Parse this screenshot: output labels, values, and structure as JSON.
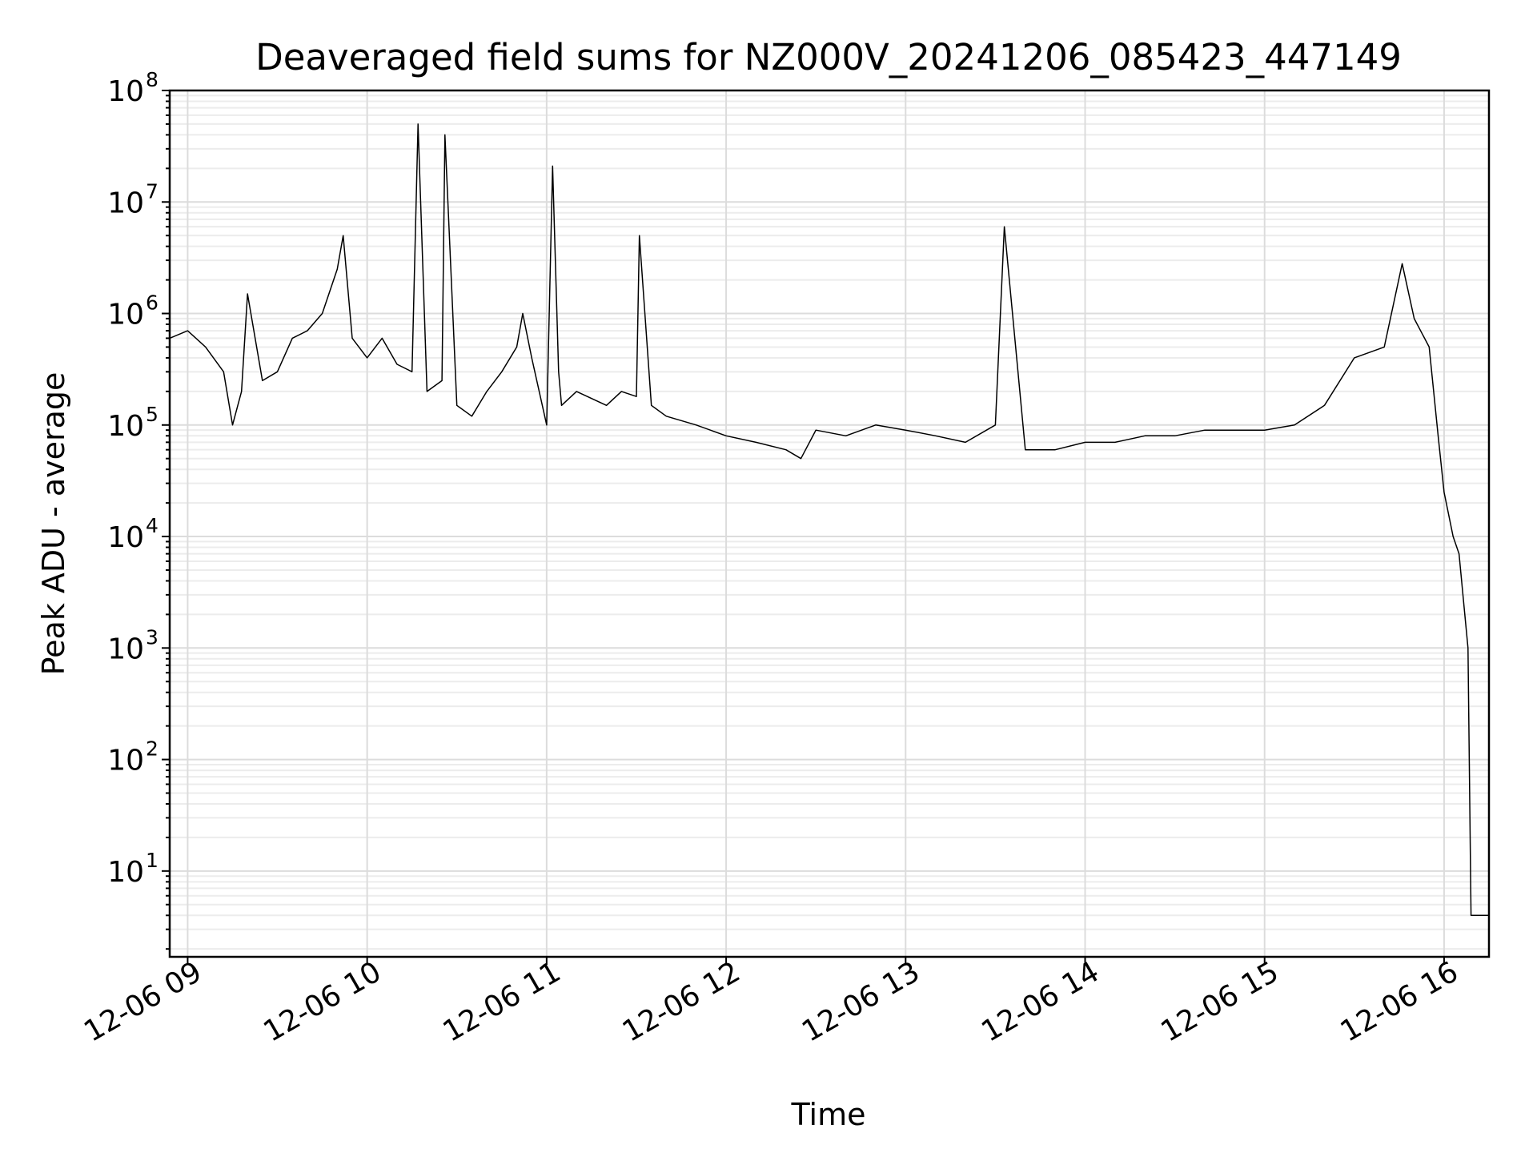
{
  "chart_data": {
    "type": "line",
    "title": "Deaveraged field sums for NZ000V_20241206_085423_447149",
    "xlabel": "Time",
    "ylabel": "Peak ADU - average",
    "yscale": "log",
    "ylim": [
      1.7,
      100000000
    ],
    "xlim": [
      "12-06 08:54",
      "12-06 16:15"
    ],
    "grid": true,
    "x_ticks": [
      "12-06 09",
      "12-06 10",
      "12-06 11",
      "12-06 12",
      "12-06 13",
      "12-06 14",
      "12-06 15",
      "12-06 16"
    ],
    "y_ticks": [
      {
        "base": "10",
        "exp": "1"
      },
      {
        "base": "10",
        "exp": "2"
      },
      {
        "base": "10",
        "exp": "3"
      },
      {
        "base": "10",
        "exp": "4"
      },
      {
        "base": "10",
        "exp": "5"
      },
      {
        "base": "10",
        "exp": "6"
      },
      {
        "base": "10",
        "exp": "7"
      },
      {
        "base": "10",
        "exp": "8"
      }
    ],
    "series": [
      {
        "color": "#000000",
        "x": [
          "12-06 08:54",
          "12-06 09:00",
          "12-06 09:06",
          "12-06 09:12",
          "12-06 09:15",
          "12-06 09:18",
          "12-06 09:20",
          "12-06 09:25",
          "12-06 09:30",
          "12-06 09:35",
          "12-06 09:40",
          "12-06 09:45",
          "12-06 09:50",
          "12-06 09:52",
          "12-06 09:55",
          "12-06 10:00",
          "12-06 10:05",
          "12-06 10:10",
          "12-06 10:15",
          "12-06 10:17",
          "12-06 10:20",
          "12-06 10:25",
          "12-06 10:26",
          "12-06 10:30",
          "12-06 10:35",
          "12-06 10:40",
          "12-06 10:45",
          "12-06 10:50",
          "12-06 10:52",
          "12-06 10:55",
          "12-06 11:00",
          "12-06 11:02",
          "12-06 11:04",
          "12-06 11:05",
          "12-06 11:10",
          "12-06 11:20",
          "12-06 11:25",
          "12-06 11:30",
          "12-06 11:31",
          "12-06 11:35",
          "12-06 11:40",
          "12-06 11:50",
          "12-06 12:00",
          "12-06 12:10",
          "12-06 12:20",
          "12-06 12:25",
          "12-06 12:30",
          "12-06 12:40",
          "12-06 12:50",
          "12-06 13:00",
          "12-06 13:10",
          "12-06 13:20",
          "12-06 13:30",
          "12-06 13:33",
          "12-06 13:40",
          "12-06 13:50",
          "12-06 14:00",
          "12-06 14:10",
          "12-06 14:20",
          "12-06 14:30",
          "12-06 14:40",
          "12-06 14:50",
          "12-06 15:00",
          "12-06 15:10",
          "12-06 15:20",
          "12-06 15:30",
          "12-06 15:40",
          "12-06 15:46",
          "12-06 15:50",
          "12-06 15:55",
          "12-06 15:58",
          "12-06 16:00",
          "12-06 16:03",
          "12-06 16:05",
          "12-06 16:08",
          "12-06 16:09",
          "12-06 16:10",
          "12-06 16:12",
          "12-06 16:15"
        ],
        "y": [
          600000,
          700000,
          500000,
          300000,
          100000,
          200000,
          1500000,
          250000,
          300000,
          600000,
          700000,
          1000000,
          2500000,
          5000000,
          600000,
          400000,
          600000,
          350000,
          300000,
          50000000,
          200000,
          250000,
          40000000,
          150000,
          120000,
          200000,
          300000,
          500000,
          1000000,
          400000,
          100000,
          21000000,
          300000,
          150000,
          200000,
          150000,
          200000,
          180000,
          5000000,
          150000,
          120000,
          100000,
          80000,
          70000,
          60000,
          50000,
          90000,
          80000,
          100000,
          90000,
          80000,
          70000,
          100000,
          6000000,
          60000,
          60000,
          70000,
          70000,
          80000,
          80000,
          90000,
          90000,
          90000,
          100000,
          150000,
          400000,
          500000,
          2800000,
          900000,
          500000,
          80000,
          25000,
          10000,
          7000,
          1000,
          4,
          4,
          4,
          4
        ]
      }
    ]
  }
}
